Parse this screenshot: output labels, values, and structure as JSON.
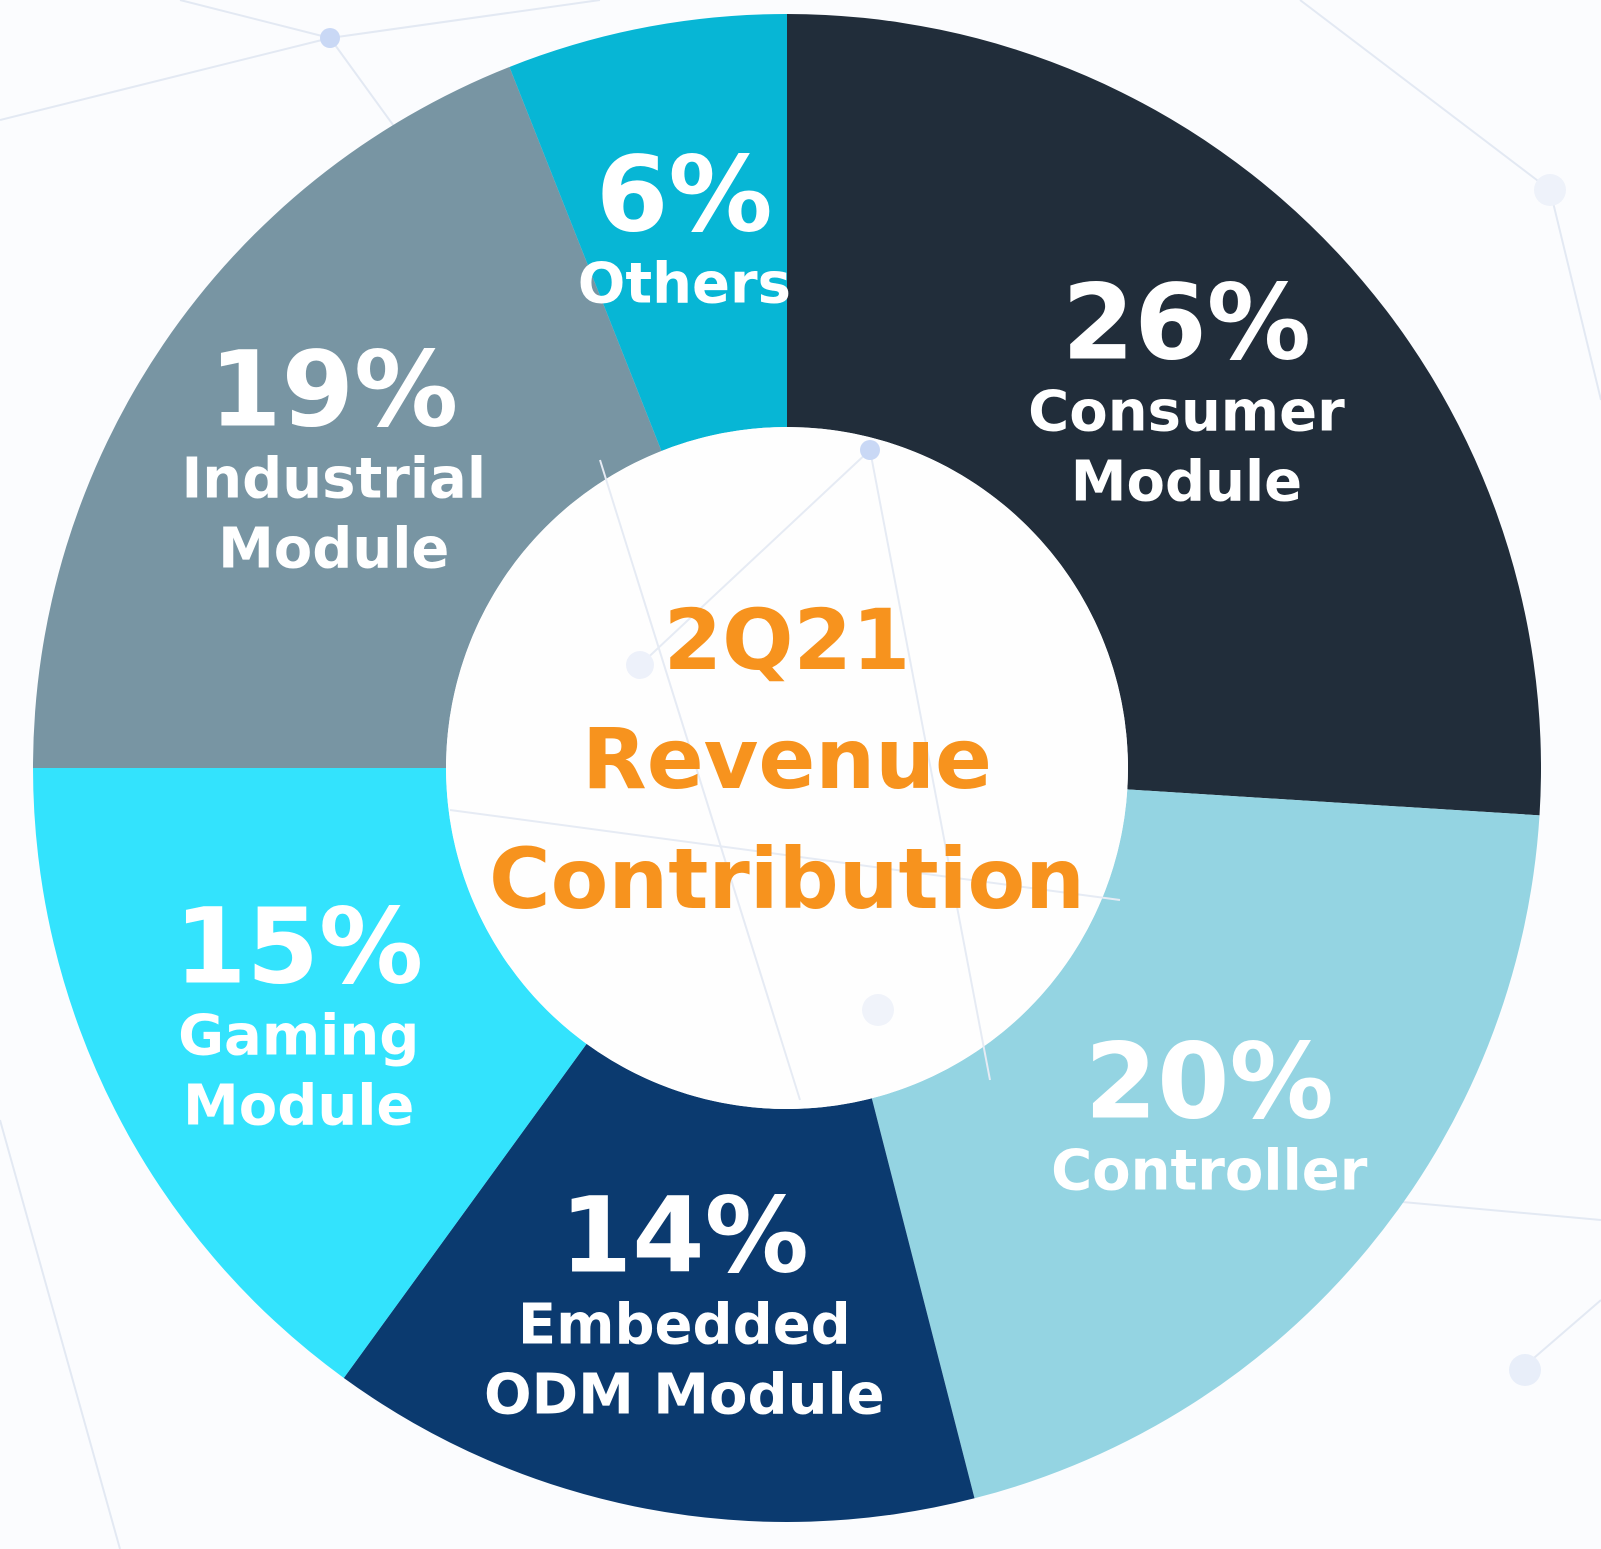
{
  "chart_data": {
    "type": "pie",
    "donut": true,
    "title": "2Q21\nRevenue\nContribution",
    "categories": [
      "Consumer\nModule",
      "Controller",
      "Embedded\nODM Module",
      "Gaming\nModule",
      "Industrial\nModule",
      "Others"
    ],
    "values": [
      26,
      20,
      14,
      15,
      19,
      6
    ],
    "value_labels": [
      "26%",
      "20%",
      "14%",
      "15%",
      "19%",
      "6%"
    ],
    "colors": [
      "#212d3a",
      "#94d4e2",
      "#0b3a6f",
      "#33e3fd",
      "#7895a3",
      "#07b6d5"
    ]
  }
}
